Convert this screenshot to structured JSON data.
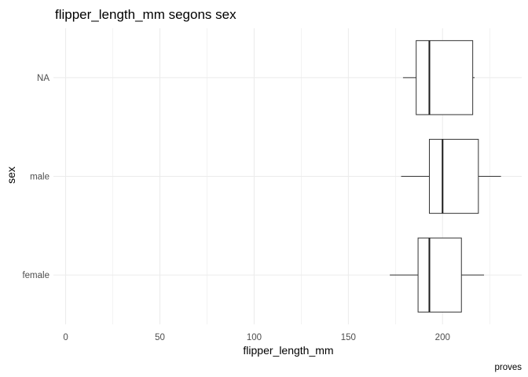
{
  "chart_data": {
    "type": "boxplot",
    "orientation": "horizontal",
    "title": "flipper_length_mm segons sex",
    "xlabel": "flipper_length_mm",
    "ylabel": "sex",
    "caption": "proves",
    "xlim": [
      -6.5,
      242
    ],
    "x_ticks": [
      0,
      50,
      100,
      150,
      200
    ],
    "x_tick_labels": [
      "0",
      "50",
      "100",
      "150",
      "200"
    ],
    "x_minor_ticks": [
      25,
      75,
      125,
      175,
      225
    ],
    "categories": [
      "female",
      "male",
      "NA"
    ],
    "boxes": [
      {
        "category": "female",
        "lower_whisker": 172,
        "q1": 187,
        "median": 193,
        "q3": 210,
        "upper_whisker": 222
      },
      {
        "category": "male",
        "lower_whisker": 178,
        "q1": 193,
        "median": 200,
        "q3": 219,
        "upper_whisker": 231
      },
      {
        "category": "NA",
        "lower_whisker": 179,
        "q1": 186,
        "median": 193,
        "q3": 216,
        "upper_whisker": 217
      }
    ],
    "grid": true,
    "theme": "minimal"
  }
}
